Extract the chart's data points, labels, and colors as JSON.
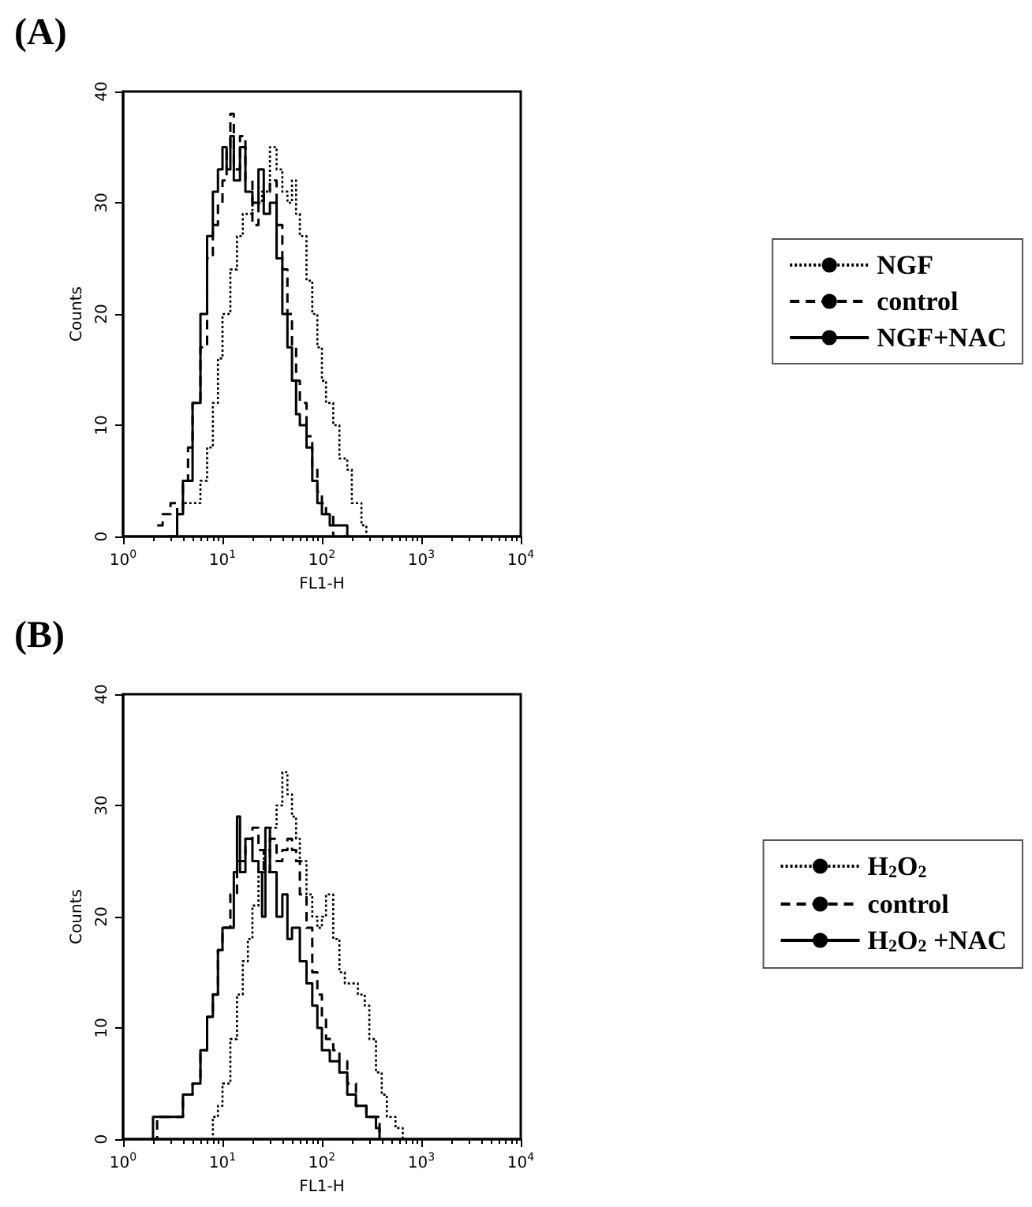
{
  "chart_data": [
    {
      "type": "step",
      "title": "(A)",
      "xlabel": "FL1-H",
      "ylabel": "Counts",
      "log": "x",
      "legend": "right",
      "xlim": [
        1,
        10000
      ],
      "xticks": [
        {
          "value": 1,
          "label": "10$^{0}$"
        },
        {
          "value": 10,
          "label": "10$^{1}$"
        },
        {
          "value": 100,
          "label": "10$^{2}$"
        },
        {
          "value": 1000,
          "label": "10$^{3}$"
        },
        {
          "value": 10000,
          "label": "10$^{4}$"
        }
      ],
      "ylim": [
        0,
        40
      ],
      "yticks": [
        0,
        10,
        20,
        30,
        40
      ],
      "series": [
        {
          "name": "NGF",
          "color": "#000000",
          "line_style": "dotted",
          "x": [
            3,
            3.5,
            4,
            5,
            6,
            7,
            8,
            9,
            10,
            12,
            14,
            16,
            20,
            25,
            30,
            35,
            40,
            45,
            50,
            55,
            60,
            70,
            80,
            90,
            100,
            110,
            130,
            150,
            180,
            200,
            250,
            280
          ],
          "values": [
            0,
            2,
            3,
            3,
            5,
            8,
            12,
            16,
            20,
            24,
            27,
            29,
            30,
            31,
            35,
            33,
            31,
            30,
            32,
            29,
            27,
            23,
            20,
            17,
            14,
            12,
            10,
            7,
            6,
            3,
            1,
            0
          ]
        },
        {
          "name": "control",
          "color": "#000000",
          "line_style": "dashed",
          "x": [
            2.2,
            2.5,
            3,
            3.5,
            4,
            4.5,
            5,
            6,
            7,
            8,
            9,
            10,
            11,
            12,
            13,
            15,
            17,
            20,
            23,
            26,
            30,
            35,
            40,
            45,
            50,
            55,
            60,
            70,
            80,
            90,
            100,
            110,
            130
          ],
          "values": [
            1,
            2,
            3,
            2,
            5,
            8,
            12,
            17,
            25,
            28,
            30,
            32,
            35,
            38,
            33,
            36,
            32,
            28,
            30,
            31,
            32,
            28,
            24,
            20,
            17,
            14,
            12,
            9,
            6,
            4,
            3,
            2,
            0
          ]
        },
        {
          "name": "NGF+NAC",
          "color": "#000000",
          "line_style": "solid",
          "x": [
            2.9,
            3.5,
            4,
            5,
            6,
            7,
            8,
            9,
            10,
            11,
            12,
            13,
            15,
            17,
            20,
            23,
            26,
            30,
            35,
            40,
            45,
            50,
            55,
            60,
            70,
            80,
            90,
            100,
            120,
            160,
            180
          ],
          "values": [
            0,
            2,
            5,
            12,
            20,
            27,
            31,
            33,
            35,
            33,
            36,
            32,
            35,
            31,
            30,
            33,
            29,
            30,
            25,
            20,
            17,
            14,
            11,
            10,
            8,
            5,
            3,
            2,
            1,
            1,
            0
          ]
        }
      ]
    },
    {
      "type": "step",
      "title": "(B)",
      "xlabel": "FL1-H",
      "ylabel": "Counts",
      "log": "x",
      "legend": "right",
      "xlim": [
        1,
        10000
      ],
      "xticks": [
        {
          "value": 1,
          "label": "10$^{0}$"
        },
        {
          "value": 10,
          "label": "10$^{1}$"
        },
        {
          "value": 100,
          "label": "10$^{2}$"
        },
        {
          "value": 1000,
          "label": "10$^{3}$"
        },
        {
          "value": 10000,
          "label": "10$^{4}$"
        }
      ],
      "ylim": [
        0,
        40
      ],
      "yticks": [
        0,
        10,
        20,
        30,
        40
      ],
      "series": [
        {
          "name": "H$_{2}$O$_{2}$",
          "color": "#000000",
          "line_style": "dotted",
          "x": [
            7,
            8,
            9,
            10,
            12,
            14,
            16,
            18,
            20,
            23,
            26,
            30,
            35,
            40,
            45,
            50,
            55,
            60,
            70,
            80,
            90,
            100,
            110,
            130,
            150,
            170,
            200,
            230,
            270,
            300,
            350,
            400,
            450,
            550,
            650
          ],
          "values": [
            0,
            2,
            3,
            5,
            9,
            13,
            16,
            18,
            21,
            24,
            26,
            28,
            30,
            33,
            31,
            29,
            27,
            25,
            22,
            20,
            19,
            20,
            22,
            18,
            15,
            14,
            14,
            13,
            12,
            9,
            6,
            4,
            2,
            1,
            0
          ]
        },
        {
          "name": "control",
          "color": "#000000",
          "line_style": "dashed",
          "x": [
            1.9,
            2.2,
            3,
            4,
            5,
            6,
            7,
            8,
            9,
            10,
            12,
            14,
            17,
            20,
            23,
            26,
            30,
            35,
            40,
            45,
            50,
            55,
            60,
            70,
            80,
            90,
            100,
            110,
            130,
            150,
            180,
            220,
            280,
            380
          ],
          "values": [
            0,
            2,
            2,
            4,
            5,
            8,
            11,
            13,
            17,
            19,
            22,
            25,
            27,
            28,
            26,
            24,
            27,
            25,
            26,
            27,
            26,
            25,
            22,
            19,
            15,
            13,
            11,
            9,
            8,
            7,
            5,
            3,
            2,
            0
          ]
        },
        {
          "name": "H$_{2}$O$_{2}$ +NAC",
          "color": "#000000",
          "line_style": "solid",
          "x": [
            1.9,
            2,
            3,
            4,
            5,
            6,
            7,
            8,
            9,
            10,
            11,
            13,
            14,
            15,
            17,
            20,
            23,
            25,
            27,
            30,
            35,
            40,
            45,
            50,
            60,
            70,
            80,
            90,
            100,
            120,
            150,
            180,
            220,
            280,
            350,
            380
          ],
          "values": [
            0,
            2,
            2,
            4,
            5,
            8,
            11,
            13,
            17,
            19,
            19,
            24,
            29,
            24,
            27,
            25,
            24,
            20,
            28,
            24,
            20,
            22,
            18,
            19,
            16,
            14,
            12,
            10,
            8,
            7,
            6,
            4,
            3,
            2,
            1,
            0
          ]
        }
      ]
    }
  ]
}
